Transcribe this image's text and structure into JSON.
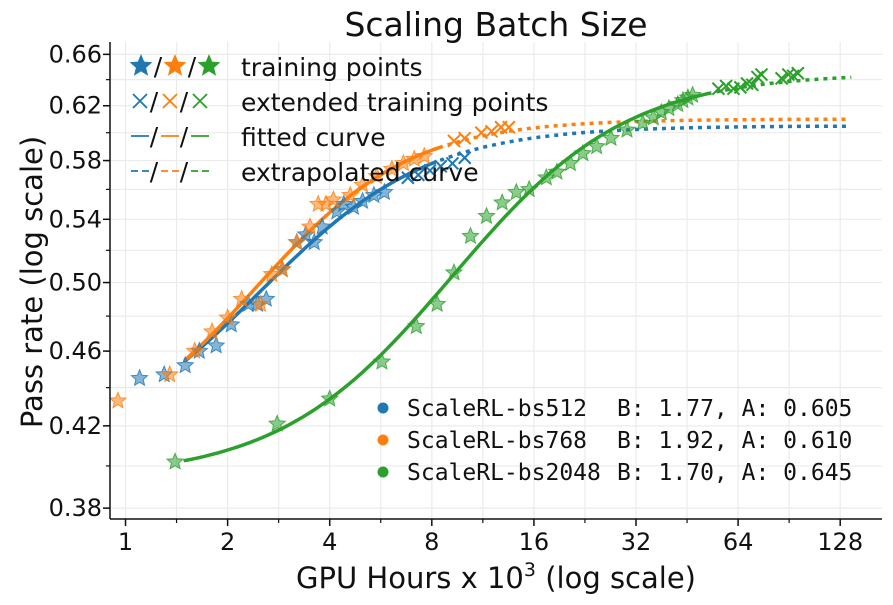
{
  "chart_data": {
    "type": "scatter",
    "title": "Scaling Batch Size",
    "xlabel": "GPU Hours x 10",
    "xlabel_sup": "3",
    "xlabel_suffix": " (log scale)",
    "ylabel": "Pass rate (log scale)",
    "xscale": "log2",
    "yscale": "log",
    "xlim": [
      0.9,
      170
    ],
    "ylim": [
      0.375,
      0.67
    ],
    "xticks": [
      1,
      2,
      4,
      8,
      16,
      32,
      64,
      128
    ],
    "xtick_labels": [
      "1",
      "2",
      "4",
      "8",
      "16",
      "32",
      "64",
      "128"
    ],
    "yticks": [
      0.38,
      0.42,
      0.46,
      0.5,
      0.54,
      0.58,
      0.62,
      0.66
    ],
    "ytick_labels": [
      "0.38",
      "0.42",
      "0.46",
      "0.50",
      "0.54",
      "0.58",
      "0.62",
      "0.66"
    ],
    "grid": true,
    "style_legend": {
      "location": "top-left",
      "entries": [
        {
          "symbols": [
            "★",
            "★",
            "★"
          ],
          "label": "training points"
        },
        {
          "symbols": [
            "×",
            "×",
            "×"
          ],
          "label": "extended training points"
        },
        {
          "symbols": [
            "—",
            "—",
            "—"
          ],
          "label": "fitted curve"
        },
        {
          "symbols": [
            "--",
            "--",
            "--"
          ],
          "label": "extrapolated curve"
        }
      ]
    },
    "series_legend_location": "bottom-right",
    "series": [
      {
        "name": "ScaleRL-bs512",
        "params": "B: 1.77, A: 0.605",
        "color": "#1f77b4",
        "training_points": [
          [
            1.1,
            0.445
          ],
          [
            1.3,
            0.447
          ],
          [
            1.5,
            0.452
          ],
          [
            1.65,
            0.46
          ],
          [
            1.85,
            0.463
          ],
          [
            2.05,
            0.475
          ],
          [
            2.3,
            0.487
          ],
          [
            2.45,
            0.487
          ],
          [
            2.6,
            0.49
          ],
          [
            2.9,
            0.508
          ],
          [
            3.2,
            0.525
          ],
          [
            3.4,
            0.53
          ],
          [
            3.6,
            0.525
          ],
          [
            3.8,
            0.535
          ],
          [
            4.2,
            0.545
          ],
          [
            4.4,
            0.55
          ],
          [
            4.7,
            0.548
          ],
          [
            5.0,
            0.552
          ],
          [
            5.4,
            0.556
          ],
          [
            5.8,
            0.558
          ]
        ],
        "extended_points": [
          [
            6.8,
            0.568
          ],
          [
            7.3,
            0.57
          ],
          [
            7.9,
            0.573
          ],
          [
            8.5,
            0.576
          ],
          [
            9.2,
            0.578
          ],
          [
            10.0,
            0.582
          ]
        ],
        "fit_range": [
          1.5,
          8.0
        ],
        "extrap_range": [
          8.0,
          136
        ]
      },
      {
        "name": "ScaleRL-bs768",
        "params": "B: 1.92, A: 0.610",
        "color": "#ff7f0e",
        "training_points": [
          [
            0.95,
            0.433
          ],
          [
            1.35,
            0.447
          ],
          [
            1.6,
            0.46
          ],
          [
            1.8,
            0.471
          ],
          [
            2.0,
            0.479
          ],
          [
            2.2,
            0.49
          ],
          [
            2.5,
            0.487
          ],
          [
            2.7,
            0.505
          ],
          [
            2.9,
            0.508
          ],
          [
            3.2,
            0.525
          ],
          [
            3.5,
            0.535
          ],
          [
            3.7,
            0.55
          ],
          [
            3.9,
            0.55
          ],
          [
            4.1,
            0.553
          ],
          [
            4.6,
            0.556
          ],
          [
            5.0,
            0.563
          ],
          [
            5.5,
            0.569
          ],
          [
            6.1,
            0.574
          ],
          [
            6.6,
            0.578
          ],
          [
            7.1,
            0.581
          ],
          [
            7.6,
            0.583
          ]
        ],
        "extended_points": [
          [
            9.3,
            0.594
          ],
          [
            10.0,
            0.596
          ],
          [
            11.2,
            0.6
          ],
          [
            12.0,
            0.601
          ],
          [
            12.8,
            0.604
          ],
          [
            13.5,
            0.604
          ]
        ],
        "fit_range": [
          1.5,
          8.4
        ],
        "extrap_range": [
          8.4,
          136
        ]
      },
      {
        "name": "ScaleRL-bs2048",
        "params": "B: 1.70, A: 0.645",
        "color": "#2ca02c",
        "training_points": [
          [
            1.4,
            0.402
          ],
          [
            2.8,
            0.421
          ],
          [
            4.0,
            0.434
          ],
          [
            5.7,
            0.454
          ],
          [
            7.2,
            0.474
          ],
          [
            8.3,
            0.487
          ],
          [
            9.3,
            0.506
          ],
          [
            10.4,
            0.529
          ],
          [
            11.6,
            0.542
          ],
          [
            12.9,
            0.551
          ],
          [
            14.2,
            0.558
          ],
          [
            15.5,
            0.56
          ],
          [
            17.4,
            0.568
          ],
          [
            18.7,
            0.572
          ],
          [
            20.5,
            0.578
          ],
          [
            22.3,
            0.585
          ],
          [
            24.5,
            0.59
          ],
          [
            27.0,
            0.596
          ],
          [
            30.1,
            0.602
          ],
          [
            33.5,
            0.607
          ],
          [
            36.0,
            0.611
          ],
          [
            38.0,
            0.615
          ],
          [
            40.0,
            0.618
          ],
          [
            42.5,
            0.621
          ],
          [
            44.0,
            0.624
          ],
          [
            45.5,
            0.626
          ],
          [
            47.0,
            0.628
          ]
        ],
        "extended_points": [
          [
            56.0,
            0.633
          ],
          [
            59.0,
            0.635
          ],
          [
            62.0,
            0.633
          ],
          [
            65.0,
            0.634
          ],
          [
            68.0,
            0.637
          ],
          [
            70.5,
            0.636
          ],
          [
            73.0,
            0.642
          ],
          [
            75.0,
            0.644
          ],
          [
            86.0,
            0.641
          ],
          [
            90.0,
            0.644
          ],
          [
            93.0,
            0.643
          ],
          [
            96.0,
            0.645
          ]
        ],
        "fit_range": [
          1.5,
          52.0
        ],
        "extrap_range": [
          52.0,
          138
        ]
      }
    ]
  }
}
